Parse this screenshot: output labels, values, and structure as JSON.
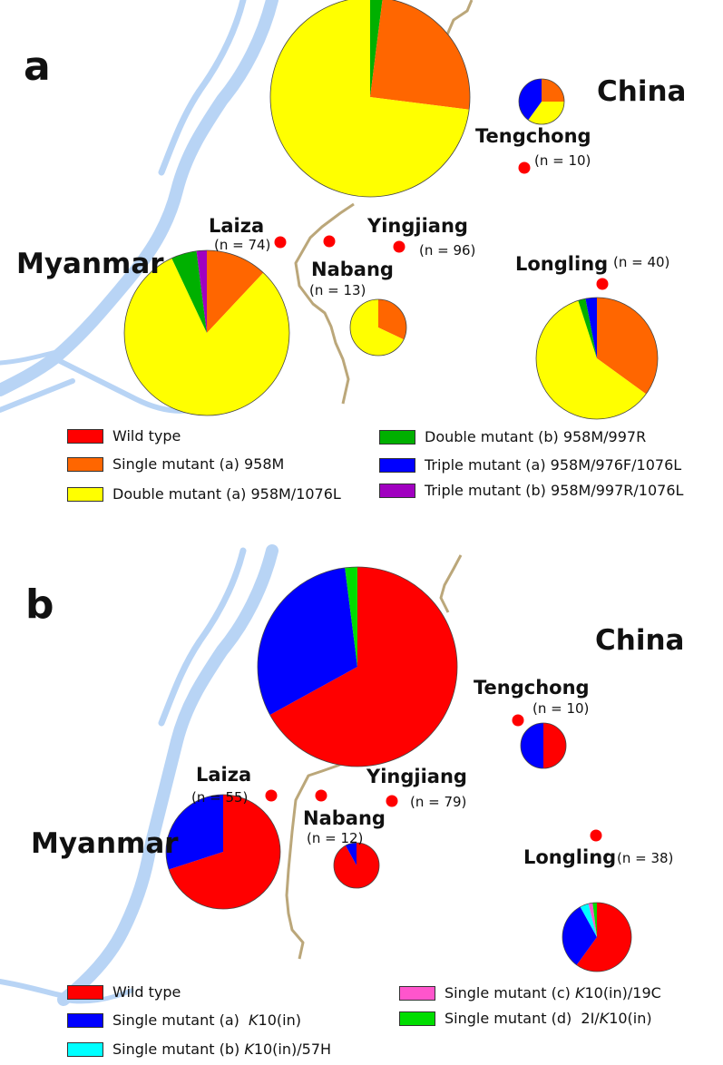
{
  "colors": {
    "wild_type": "#ff0000",
    "single_a_dhps": "#ff6600",
    "double_a_dhps": "#ffff00",
    "double_b_dhps": "#00b000",
    "triple_a_dhps": "#0000ff",
    "triple_b_dhps": "#a000c0",
    "single_a_k10": "#0000ff",
    "single_b_k10": "#00ffff",
    "single_c_k10": "#ff55cc",
    "single_d_k10": "#00dd00",
    "water": "#b8d4f5",
    "border": "#bba77a",
    "marker": "#ff0000"
  },
  "panel_a": {
    "letter": "a",
    "countries": {
      "china": "China",
      "myanmar": "Myanmar"
    },
    "sites": {
      "tengchong": {
        "name": "Tengchong",
        "n": "(n = 10)"
      },
      "laiza": {
        "name": "Laiza",
        "n": "(n = 74)"
      },
      "yingjiang": {
        "name": "Yingjiang",
        "n": "(n = 96)"
      },
      "nabang": {
        "name": "Nabang",
        "n": "(n = 13)"
      },
      "longling": {
        "name": "Longling",
        "n": "(n = 40)"
      }
    },
    "legend": {
      "wild_type": "Wild type",
      "single_a": "Single mutant (a)  958M",
      "double_a": "Double mutant (a) 958M/1076L",
      "double_b": "Double mutant (b) 958M/997R",
      "triple_a": "Triple mutant (a)  958M/976F/1076L",
      "triple_b": "Triple mutant (b)  958M/997R/1076L"
    }
  },
  "panel_b": {
    "letter": "b",
    "countries": {
      "china": "China",
      "myanmar": "Myanmar"
    },
    "sites": {
      "tengchong": {
        "name": "Tengchong",
        "n": "(n = 10)"
      },
      "laiza": {
        "name": "Laiza",
        "n": "(n = 55)"
      },
      "yingjiang": {
        "name": "Yingjiang",
        "n": "(n = 79)"
      },
      "nabang": {
        "name": "Nabang",
        "n": "(n = 12)"
      },
      "longling": {
        "name": "Longling",
        "n": "(n = 38)"
      }
    },
    "legend": {
      "wild_type": "Wild type",
      "single_a_prefix": "Single mutant (a)  ",
      "single_a_gene": "K",
      "single_a_suffix": "10(in)",
      "single_b_prefix": "Single mutant (b) ",
      "single_b_gene": "K",
      "single_b_suffix": "10(in)/57H",
      "single_c_prefix": "Single mutant (c) ",
      "single_c_gene": "K",
      "single_c_suffix": "10(in)/19C",
      "single_d_prefix": "Single mutant (d)  2I/",
      "single_d_gene": "K",
      "single_d_suffix": "10(in)"
    }
  },
  "pie_data": {
    "panel_a": [
      {
        "site": "yingjiang",
        "slices": [
          {
            "key": "double_b_dhps",
            "frac": 0.02
          },
          {
            "key": "single_a_dhps",
            "frac": 0.25
          },
          {
            "key": "double_a_dhps",
            "frac": 0.73
          }
        ]
      },
      {
        "site": "tengchong",
        "slices": [
          {
            "key": "single_a_dhps",
            "frac": 0.25
          },
          {
            "key": "double_a_dhps",
            "frac": 0.35
          },
          {
            "key": "triple_a_dhps",
            "frac": 0.4
          }
        ]
      },
      {
        "site": "laiza",
        "slices": [
          {
            "key": "single_a_dhps",
            "frac": 0.12
          },
          {
            "key": "double_a_dhps",
            "frac": 0.81
          },
          {
            "key": "double_b_dhps",
            "frac": 0.05
          },
          {
            "key": "triple_b_dhps",
            "frac": 0.02
          }
        ]
      },
      {
        "site": "nabang",
        "slices": [
          {
            "key": "single_a_dhps",
            "frac": 0.32
          },
          {
            "key": "double_a_dhps",
            "frac": 0.68
          }
        ]
      },
      {
        "site": "longling",
        "slices": [
          {
            "key": "single_a_dhps",
            "frac": 0.35
          },
          {
            "key": "double_a_dhps",
            "frac": 0.6
          },
          {
            "key": "double_b_dhps",
            "frac": 0.02
          },
          {
            "key": "triple_a_dhps",
            "frac": 0.03
          }
        ]
      }
    ],
    "panel_b": [
      {
        "site": "yingjiang",
        "slices": [
          {
            "key": "wild_type",
            "frac": 0.67
          },
          {
            "key": "single_a_k10",
            "frac": 0.31
          },
          {
            "key": "single_d_k10",
            "frac": 0.02
          }
        ]
      },
      {
        "site": "tengchong",
        "slices": [
          {
            "key": "wild_type",
            "frac": 0.5
          },
          {
            "key": "single_a_k10",
            "frac": 0.5
          }
        ]
      },
      {
        "site": "laiza",
        "slices": [
          {
            "key": "wild_type",
            "frac": 0.7
          },
          {
            "key": "single_a_k10",
            "frac": 0.3
          }
        ]
      },
      {
        "site": "nabang",
        "slices": [
          {
            "key": "wild_type",
            "frac": 0.92
          },
          {
            "key": "single_a_k10",
            "frac": 0.08
          }
        ]
      },
      {
        "site": "longling",
        "slices": [
          {
            "key": "wild_type",
            "frac": 0.6
          },
          {
            "key": "single_a_k10",
            "frac": 0.32
          },
          {
            "key": "single_b_k10",
            "frac": 0.04
          },
          {
            "key": "single_c_k10",
            "frac": 0.02
          },
          {
            "key": "single_d_k10",
            "frac": 0.02
          }
        ]
      }
    ]
  }
}
